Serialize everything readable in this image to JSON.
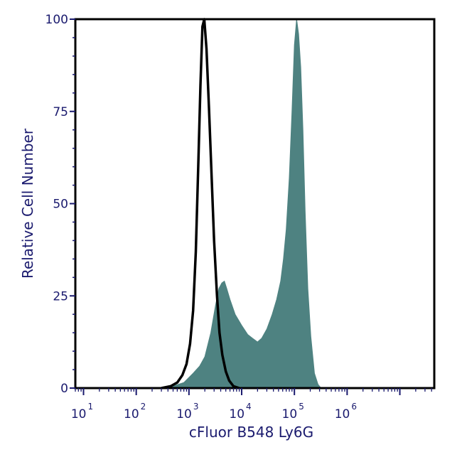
{
  "chart_data": {
    "type": "area",
    "title": "",
    "xlabel": "cFluor B548 Ly6G",
    "ylabel": "Relative Cell Number",
    "x_scale": "log",
    "xlim": [
      7,
      45000000
    ],
    "ylim": [
      0,
      100
    ],
    "y_ticks": [
      "0",
      "25",
      "50",
      "75",
      "100"
    ],
    "x_ticks": [
      {
        "base": "10",
        "exp": "1"
      },
      {
        "base": "10",
        "exp": "2"
      },
      {
        "base": "10",
        "exp": "3"
      },
      {
        "base": "10",
        "exp": "4"
      },
      {
        "base": "10",
        "exp": "5"
      },
      {
        "base": "10",
        "exp": "6"
      }
    ],
    "grid": false,
    "series": [
      {
        "style": "filled",
        "color": "#4e8281",
        "x": [
          300,
          500,
          800,
          1200,
          1600,
          2000,
          2600,
          3200,
          3700,
          4200,
          4700,
          5200,
          6000,
          7500,
          10000,
          13000,
          16000,
          20000,
          24000,
          30000,
          38000,
          46000,
          55000,
          62000,
          70000,
          80000,
          90000,
          100000,
          110000,
          120000,
          132000,
          145000,
          160000,
          180000,
          205000,
          240000,
          280000,
          320000
        ],
        "y": [
          0,
          0.5,
          1.5,
          4,
          6,
          8.5,
          15,
          22.5,
          27,
          28.5,
          29,
          27,
          24,
          20,
          17,
          14.5,
          13.5,
          12.5,
          13.5,
          16,
          20,
          24,
          29,
          35,
          43,
          57,
          75,
          93,
          100,
          96,
          87,
          70,
          48,
          27,
          14,
          4,
          1,
          0
        ]
      },
      {
        "style": "outline",
        "color": "#000000",
        "x": [
          300,
          450,
          600,
          750,
          900,
          1050,
          1200,
          1350,
          1500,
          1650,
          1800,
          1950,
          2150,
          2400,
          2700,
          3000,
          3400,
          3800,
          4300,
          5000,
          5800,
          7000,
          9000
        ],
        "y": [
          0,
          0.5,
          1.5,
          3.5,
          6.5,
          12,
          21,
          37,
          60,
          82,
          98,
          100,
          92,
          76,
          57,
          40,
          25,
          15,
          9,
          4.5,
          2,
          0.5,
          0
        ]
      }
    ]
  }
}
